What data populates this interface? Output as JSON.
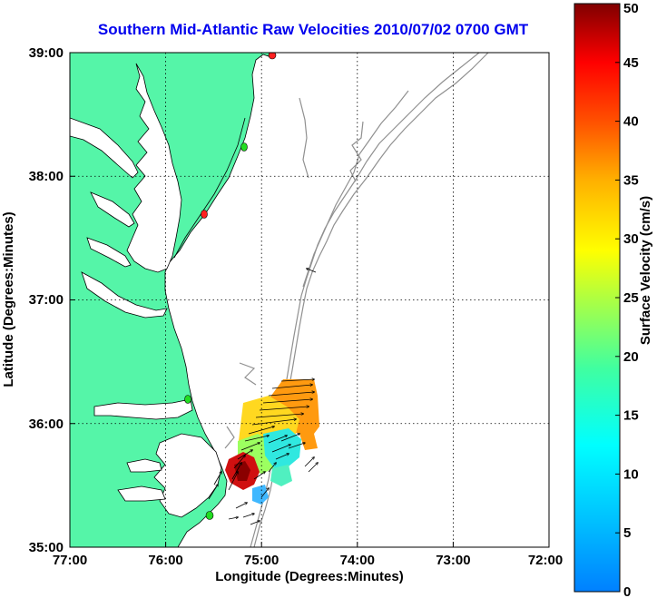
{
  "title": "Southern Mid-Atlantic Raw Velocities 2010/07/02 0700 GMT",
  "map": {
    "xlabel": "Longitude (Degrees:Minutes)",
    "ylabel": "Latitude (Degrees:Minutes)",
    "x_ticks": [
      "77:00",
      "76:00",
      "75:00",
      "74:00",
      "73:00",
      "72:00"
    ],
    "y_ticks": [
      "39:00",
      "38:00",
      "37:00",
      "36:00",
      "35:00"
    ],
    "lon_range": [
      -77,
      -72
    ],
    "lat_range": [
      35,
      39
    ],
    "grid": "dotted",
    "land_color": "#55f5a8",
    "ocean_color": "#ffffff",
    "bathymetry_color": "#909090",
    "station_colors": [
      "#ff2020",
      "#22dd22"
    ]
  },
  "colorbar": {
    "label": "Surface Velocity (cm/s)",
    "ticks": [
      "0",
      "5",
      "10",
      "15",
      "20",
      "25",
      "30",
      "35",
      "40",
      "45",
      "50"
    ],
    "min": 0,
    "max": 50,
    "colormap": "jet"
  }
}
